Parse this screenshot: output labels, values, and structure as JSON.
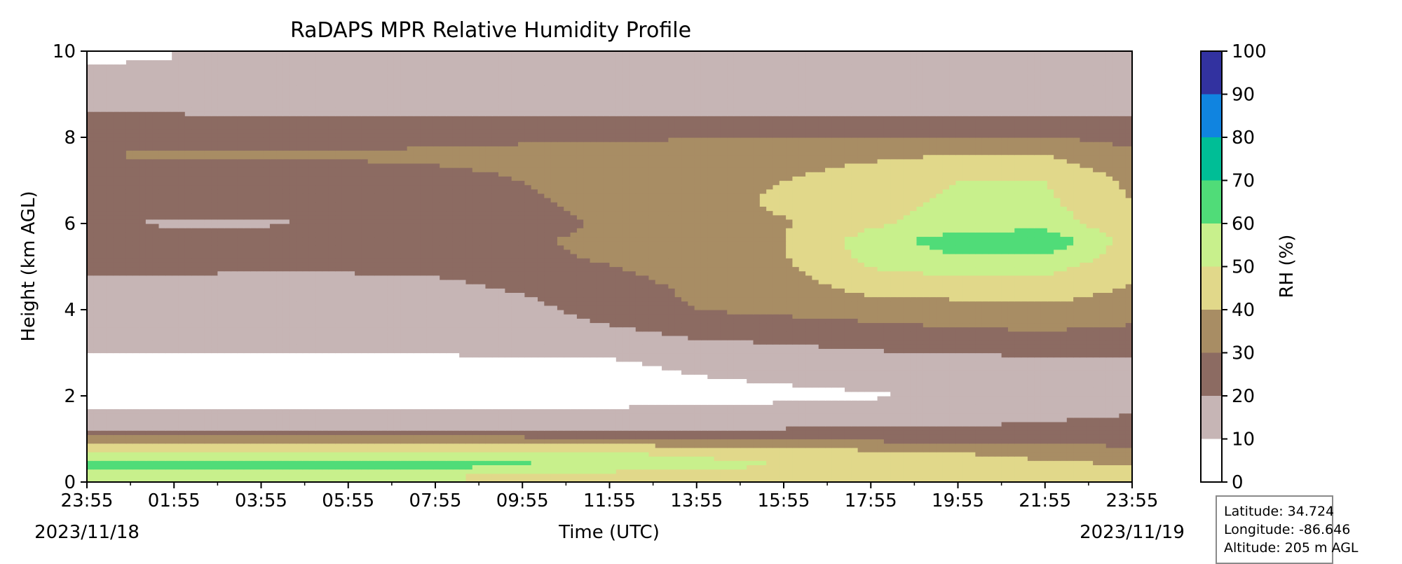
{
  "chart_data": {
    "type": "heatmap",
    "title": "RaDAPS MPR Relative Humidity Profile",
    "xlabel": "Time (UTC)",
    "ylabel": "Height (km AGL)",
    "x_tick_labels": [
      "23:55",
      "01:55",
      "03:55",
      "05:55",
      "07:55",
      "09:55",
      "11:55",
      "13:55",
      "15:55",
      "17:55",
      "19:55",
      "21:55",
      "23:55"
    ],
    "x_hours": [
      0,
      2,
      4,
      6,
      8,
      10,
      12,
      14,
      16,
      18,
      20,
      22,
      24
    ],
    "xlim_hours": [
      0,
      24
    ],
    "start_date": "2023/11/18",
    "end_date": "2023/11/19",
    "ylim": [
      0,
      10
    ],
    "y_ticks": [
      0,
      2,
      4,
      6,
      8,
      10
    ],
    "colorbar": {
      "label": "RH (%)",
      "ticks": [
        0,
        10,
        20,
        30,
        40,
        50,
        60,
        70,
        80,
        90,
        100
      ],
      "levels": [
        0,
        10,
        20,
        30,
        40,
        50,
        60,
        70,
        80,
        90,
        100
      ],
      "colors": [
        "#ffffff",
        "#c6b5b5",
        "#8c6b62",
        "#a88d64",
        "#e1d88a",
        "#c8f08c",
        "#50dc78",
        "#00be96",
        "#1084e0",
        "#3232a0"
      ]
    },
    "rh_grid": {
      "x_hours": [
        0,
        2,
        4,
        6,
        8,
        10,
        12,
        14,
        16,
        18,
        20,
        22,
        24
      ],
      "heights_km": [
        0.15,
        0.4,
        0.7,
        1.0,
        1.3,
        2.0,
        2.8,
        3.4,
        4.0,
        4.6,
        5.2,
        5.6,
        6.0,
        6.5,
        7.0,
        7.6,
        8.2,
        8.7,
        9.3,
        9.8
      ],
      "values": [
        [
          52,
          53,
          52,
          52,
          51,
          48,
          45,
          44,
          43,
          42,
          41,
          40,
          42
        ],
        [
          63,
          64,
          64,
          63,
          63,
          62,
          58,
          54,
          50,
          46,
          44,
          42,
          40
        ],
        [
          53,
          53,
          53,
          52,
          52,
          52,
          50,
          47,
          45,
          42,
          40,
          37,
          35
        ],
        [
          34,
          34,
          34,
          33,
          33,
          33,
          32,
          31,
          30,
          28,
          26,
          25,
          24
        ],
        [
          15,
          15,
          15,
          15,
          15,
          15,
          15,
          17,
          18,
          19,
          20,
          21,
          22
        ],
        [
          7,
          7,
          7,
          7,
          7,
          7,
          7,
          7,
          8,
          9,
          12,
          15,
          17
        ],
        [
          8,
          8,
          8,
          8,
          8,
          9,
          9,
          12,
          14,
          16,
          17,
          18,
          18
        ],
        [
          15,
          15,
          15,
          15,
          15,
          16,
          17,
          21,
          23,
          25,
          27,
          28,
          26
        ],
        [
          13,
          13,
          12,
          13,
          14,
          17,
          24,
          30,
          32,
          34,
          36,
          38,
          35
        ],
        [
          18,
          18,
          17,
          17,
          18,
          22,
          27,
          32,
          36,
          45,
          46,
          46,
          40
        ],
        [
          23,
          23,
          24,
          24,
          25,
          28,
          31,
          35,
          39,
          53,
          58,
          58,
          44
        ],
        [
          26,
          26,
          26,
          27,
          28,
          29,
          32,
          36,
          40,
          55,
          66,
          68,
          45
        ],
        [
          20,
          19,
          19,
          20,
          22,
          27,
          31,
          35,
          39,
          48,
          55,
          56,
          42
        ],
        [
          26,
          26,
          26,
          27,
          28,
          29,
          32,
          36,
          42,
          46,
          52,
          52,
          40
        ],
        [
          25,
          26,
          26,
          26,
          27,
          30,
          33,
          36,
          40,
          45,
          50,
          50,
          38
        ],
        [
          30,
          31,
          31,
          31,
          32,
          33,
          34,
          35,
          36,
          38,
          40,
          40,
          32
        ],
        [
          25,
          25,
          25,
          25,
          25,
          26,
          26,
          27,
          27,
          27,
          26,
          26,
          24
        ],
        [
          18,
          18,
          17,
          17,
          17,
          17,
          17,
          17,
          17,
          17,
          17,
          17,
          16
        ],
        [
          15,
          15,
          15,
          15,
          15,
          15,
          15,
          15,
          15,
          15,
          15,
          15,
          15
        ],
        [
          9,
          10,
          11,
          12,
          12,
          12,
          12,
          12,
          12,
          10,
          11,
          11,
          12
        ]
      ]
    },
    "grid": false,
    "legend": "colorbar-right"
  },
  "info_box": {
    "latitude": "Latitude: 34.724",
    "longitude": "Longitude: -86.646",
    "altitude": "Altitude: 205 m AGL"
  }
}
